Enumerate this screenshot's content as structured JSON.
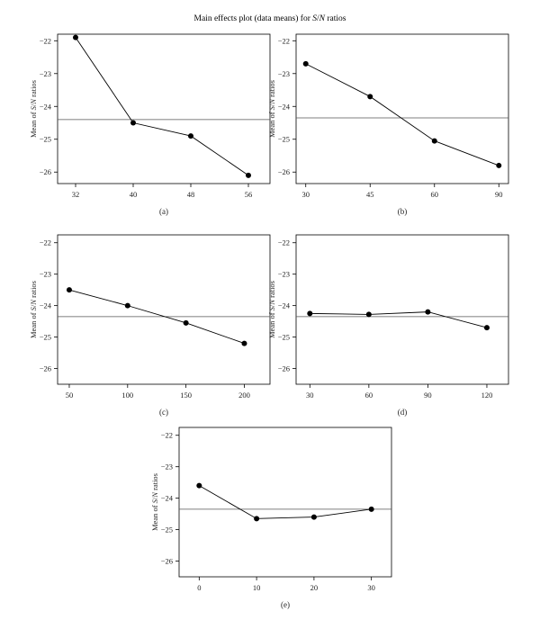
{
  "title": {
    "prefix": "Main effects plot (data means) for ",
    "italic_s": "S",
    "slash": "/",
    "italic_n": "N",
    "suffix": " ratios"
  },
  "chart_data": [
    {
      "type": "line",
      "panel_label": "(a)",
      "x": [
        32,
        40,
        48,
        56
      ],
      "y": [
        -21.9,
        -24.5,
        -24.9,
        -26.1
      ],
      "mean_line": -24.4,
      "ylabel": "Mean of S/N ratios",
      "yticks": [
        -22,
        -23,
        -24,
        -25,
        -26
      ],
      "ylim": [
        -26.35,
        -21.8
      ],
      "xlim": [
        29.5,
        59.0
      ],
      "grid": false
    },
    {
      "type": "line",
      "panel_label": "(b)",
      "x": [
        30,
        45,
        60,
        90
      ],
      "y": [
        -22.7,
        -23.7,
        -25.05,
        -25.8
      ],
      "mean_line": -24.35,
      "ylabel": "Mean of S/N ratios",
      "yticks": [
        -22,
        -23,
        -24,
        -25,
        -26
      ],
      "ylim": [
        -26.35,
        -21.8
      ],
      "xlim": [
        0.85,
        4.15
      ],
      "categorical": true,
      "grid": false
    },
    {
      "type": "line",
      "panel_label": "(c)",
      "x": [
        50,
        100,
        150,
        200
      ],
      "y": [
        -23.5,
        -24.0,
        -24.55,
        -25.2
      ],
      "mean_line": -24.35,
      "ylabel": "Mean of S/N ratios",
      "yticks": [
        -22,
        -23,
        -24,
        -25,
        -26
      ],
      "ylim": [
        -26.5,
        -21.75
      ],
      "xlim": [
        40.0,
        222.0
      ],
      "grid": false
    },
    {
      "type": "line",
      "panel_label": "(d)",
      "x": [
        30,
        60,
        90,
        120
      ],
      "y": [
        -24.25,
        -24.28,
        -24.2,
        -24.7
      ],
      "mean_line": -24.35,
      "ylabel": "Mean of S/N ratios",
      "yticks": [
        -22,
        -23,
        -24,
        -25,
        -26
      ],
      "ylim": [
        -26.5,
        -21.75
      ],
      "xlim": [
        23.0,
        131.0
      ],
      "grid": false
    },
    {
      "type": "line",
      "panel_label": "(e)",
      "x": [
        0,
        10,
        20,
        30
      ],
      "y": [
        -23.6,
        -24.65,
        -24.6,
        -24.35
      ],
      "mean_line": -24.35,
      "ylabel": "Mean of S/N ratios",
      "yticks": [
        -22,
        -23,
        -24,
        -25,
        -26
      ],
      "ylim": [
        -26.5,
        -21.75
      ],
      "xlim": [
        -3.5,
        33.5
      ],
      "grid": false
    }
  ]
}
